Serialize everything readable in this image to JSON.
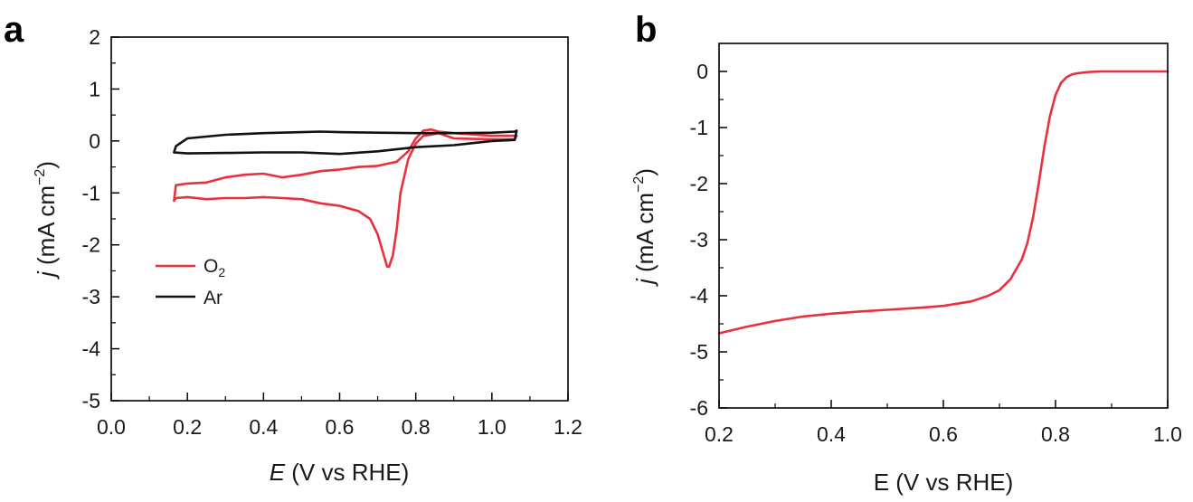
{
  "chart_data": [
    {
      "panel_label": "a",
      "type": "line",
      "xlabel": {
        "italic": "E",
        "rest": " (V vs RHE)"
      },
      "ylabel": {
        "italic": "j",
        "rest": " (mA cm",
        "sup": "−2",
        "close": ")"
      },
      "xlim": [
        0.0,
        1.2
      ],
      "ylim": [
        -5,
        2
      ],
      "xticks": [
        "0.0",
        "0.2",
        "0.4",
        "0.6",
        "0.8",
        "1.0",
        "1.2"
      ],
      "yticks": [
        "-5",
        "-4",
        "-3",
        "-2",
        "-1",
        "0",
        "1",
        "2"
      ],
      "legend": {
        "position": "left-middle"
      },
      "series": [
        {
          "name": "O2",
          "name_main": "O",
          "name_sub": "2",
          "color": "#e8313d",
          "x": [
            0.165,
            0.17,
            0.2,
            0.25,
            0.3,
            0.35,
            0.4,
            0.45,
            0.5,
            0.55,
            0.6,
            0.65,
            0.68,
            0.7,
            0.71,
            0.72,
            0.725,
            0.73,
            0.74,
            0.75,
            0.76,
            0.78,
            0.8,
            0.82,
            0.84,
            0.86,
            0.9,
            1.0,
            1.06,
            1.065,
            1.05,
            1.0,
            0.9,
            0.86,
            0.84,
            0.82,
            0.8,
            0.78,
            0.75,
            0.7,
            0.65,
            0.6,
            0.55,
            0.5,
            0.45,
            0.4,
            0.35,
            0.3,
            0.25,
            0.2,
            0.17,
            0.165
          ],
          "y": [
            -1.15,
            -1.1,
            -1.08,
            -1.12,
            -1.1,
            -1.1,
            -1.08,
            -1.1,
            -1.12,
            -1.2,
            -1.25,
            -1.35,
            -1.5,
            -1.8,
            -2.05,
            -2.3,
            -2.42,
            -2.42,
            -2.2,
            -1.7,
            -1.0,
            -0.35,
            -0.05,
            0.1,
            0.12,
            0.15,
            0.05,
            0.03,
            0.03,
            0.1,
            0.1,
            0.1,
            0.15,
            0.18,
            0.22,
            0.2,
            0.05,
            -0.2,
            -0.4,
            -0.48,
            -0.5,
            -0.55,
            -0.58,
            -0.65,
            -0.7,
            -0.63,
            -0.65,
            -0.7,
            -0.8,
            -0.82,
            -0.85,
            -1.15
          ]
        },
        {
          "name": "Ar",
          "color": "#111111",
          "x": [
            0.165,
            0.2,
            0.3,
            0.4,
            0.5,
            0.6,
            0.7,
            0.8,
            0.9,
            1.0,
            1.06,
            1.065,
            1.06,
            1.0,
            0.9,
            0.8,
            0.7,
            0.6,
            0.55,
            0.5,
            0.4,
            0.3,
            0.2,
            0.17,
            0.165
          ],
          "y": [
            -0.22,
            -0.24,
            -0.23,
            -0.22,
            -0.22,
            -0.25,
            -0.2,
            -0.12,
            -0.08,
            0.0,
            0.02,
            0.2,
            0.18,
            0.16,
            0.15,
            0.15,
            0.16,
            0.17,
            0.18,
            0.17,
            0.15,
            0.12,
            0.05,
            -0.1,
            -0.22
          ]
        }
      ]
    },
    {
      "panel_label": "b",
      "type": "line",
      "xlabel": {
        "italic": "",
        "rest": "E (V vs RHE)"
      },
      "ylabel": {
        "italic": "j",
        "rest": " (mA cm",
        "sup": "−2",
        "close": ")"
      },
      "xlim": [
        0.2,
        1.0
      ],
      "ylim": [
        -6,
        0.5
      ],
      "xticks": [
        "0.2",
        "0.4",
        "0.6",
        "0.8",
        "1.0"
      ],
      "yticks": [
        "-6",
        "-5",
        "-4",
        "-3",
        "-2",
        "-1",
        "0"
      ],
      "series": [
        {
          "color": "#e8313d",
          "x": [
            0.2,
            0.25,
            0.3,
            0.35,
            0.4,
            0.45,
            0.5,
            0.55,
            0.6,
            0.65,
            0.68,
            0.7,
            0.72,
            0.74,
            0.75,
            0.76,
            0.77,
            0.78,
            0.79,
            0.8,
            0.81,
            0.82,
            0.83,
            0.84,
            0.85,
            0.86,
            0.88,
            0.9,
            0.95,
            1.0
          ],
          "y": [
            -4.67,
            -4.55,
            -4.45,
            -4.37,
            -4.32,
            -4.28,
            -4.25,
            -4.22,
            -4.18,
            -4.1,
            -4.0,
            -3.9,
            -3.7,
            -3.35,
            -3.05,
            -2.6,
            -2.0,
            -1.35,
            -0.8,
            -0.42,
            -0.2,
            -0.1,
            -0.05,
            -0.03,
            -0.02,
            -0.01,
            0.0,
            0.0,
            0.0,
            0.0
          ]
        }
      ]
    }
  ]
}
